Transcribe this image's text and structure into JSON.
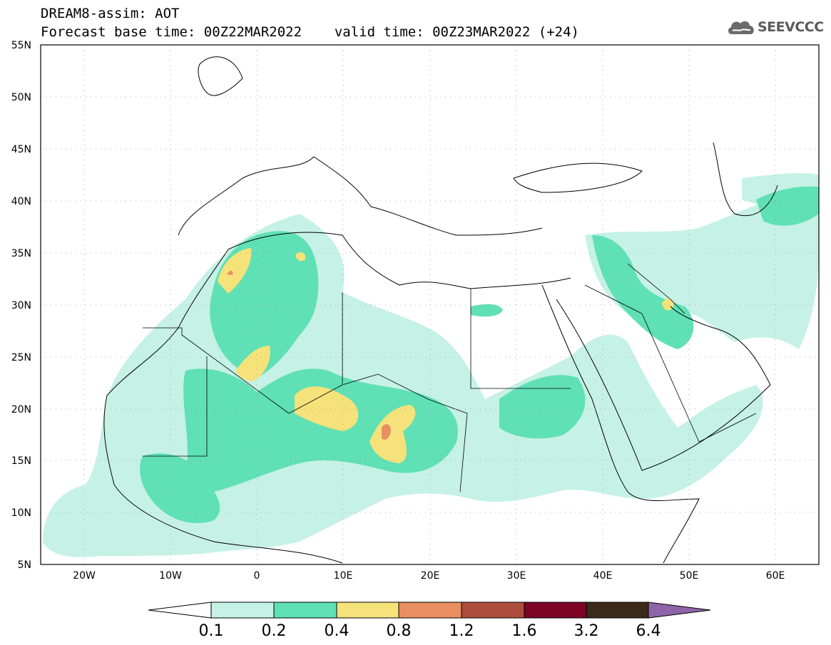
{
  "header": {
    "line1": "DREAM8-assim: AOT",
    "line2_base": "Forecast base time: 00Z22MAR2022",
    "line2_valid": "valid time: 00Z23MAR2022 (+24)"
  },
  "logo": {
    "text": "SEEVCCC",
    "icon": "cloud-icon"
  },
  "map": {
    "lon_range": [
      -25,
      65
    ],
    "lat_range": [
      5,
      55
    ],
    "lat_labels": [
      "55N",
      "50N",
      "45N",
      "40N",
      "35N",
      "30N",
      "25N",
      "20N",
      "15N",
      "10N",
      "5N"
    ],
    "lon_labels": [
      "20W",
      "10W",
      "0",
      "10E",
      "20E",
      "30E",
      "40E",
      "50E",
      "60E"
    ],
    "grid": true
  },
  "colorbar": {
    "labels": [
      "0.1",
      "0.2",
      "0.4",
      "0.8",
      "1.2",
      "1.6",
      "3.2",
      "6.4"
    ],
    "colors": [
      "#c6f1e6",
      "#5fe0b5",
      "#f5e27a",
      "#e98f62",
      "#ad4d3b",
      "#7d0427",
      "#3b2a18",
      "#8e65a8"
    ],
    "below_color": "#ffffff"
  },
  "legend_colors": {
    "aot_01_02": "#c6f1e6",
    "aot_02_04": "#5fe0b5",
    "aot_04_08": "#f5e27a",
    "aot_08_12": "#e98f62"
  }
}
